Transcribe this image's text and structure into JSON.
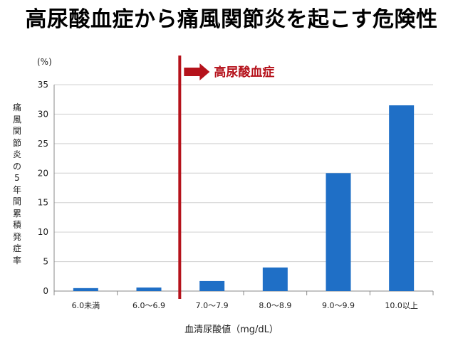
{
  "page": {
    "title": "高尿酸血症から痛風関節炎を起こす危険性"
  },
  "colors": {
    "bar": "#1f6fc6",
    "annotation": "#b5121b",
    "grid": "#d0d0d0",
    "axis": "#888888"
  },
  "chart_data": {
    "type": "bar",
    "title": "高尿酸血症から痛風関節炎を起こす危険性",
    "xlabel": "血清尿酸値（mg/dL）",
    "ylabel": "痛風関節炎の5年間累積発症率",
    "y_unit": "(%)",
    "ylim": [
      0,
      35
    ],
    "yticks": [
      0,
      5,
      10,
      15,
      20,
      25,
      30,
      35
    ],
    "grid": true,
    "categories": [
      "6.0未満",
      "6.0～6.9",
      "7.0～7.9",
      "8.0～8.9",
      "9.0～9.9",
      "10.0以上"
    ],
    "values": [
      0.5,
      0.6,
      1.7,
      4.0,
      20.0,
      31.5
    ],
    "annotation": {
      "text": "高尿酸血症",
      "marker": "vertical line between 6.0～6.9 and 7.0～7.9 with right-pointing arrow"
    }
  }
}
